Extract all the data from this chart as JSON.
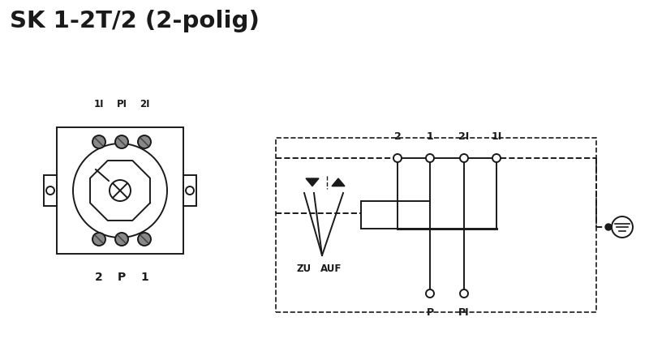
{
  "title": "SK 1-2T/2 (2-polig)",
  "title_fontsize": 21,
  "title_fontweight": "bold",
  "bg_color": "#ffffff",
  "line_color": "#1a1a1a",
  "lw": 1.4,
  "fig_width": 8.0,
  "fig_height": 4.44,
  "dpi": 100,
  "top_labels": [
    "1I",
    "PI",
    "2I"
  ],
  "bottom_labels": [
    "2",
    "P",
    "1"
  ],
  "schematic_top_labels": [
    "2",
    "1",
    "2I",
    "1I"
  ],
  "schematic_bottom_labels": [
    "P",
    "PI"
  ]
}
